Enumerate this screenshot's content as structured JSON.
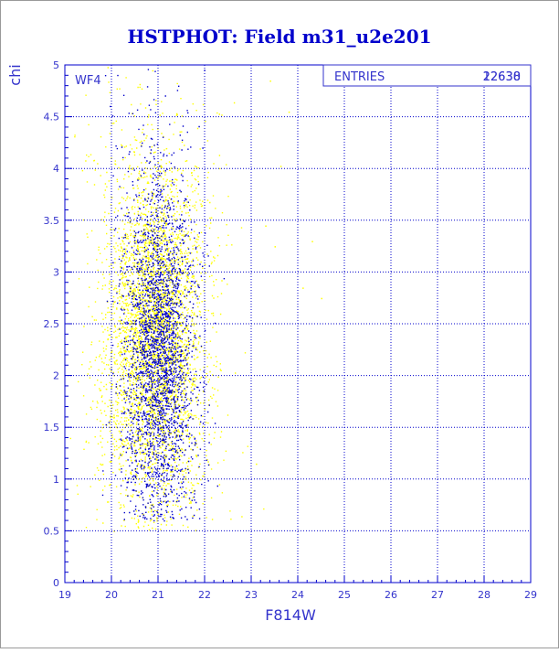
{
  "chart_data": {
    "type": "scatter",
    "title": "HSTPHOT: Field m31_u2e201",
    "xlabel": "F814W",
    "ylabel": "chi",
    "xlim": [
      19,
      29
    ],
    "ylim": [
      0,
      5
    ],
    "x_ticks": [
      "19",
      "20",
      "21",
      "22",
      "23",
      "24",
      "25",
      "26",
      "27",
      "28",
      "29"
    ],
    "y_ticks": [
      "0",
      "0.5",
      "1",
      "1.5",
      "2",
      "2.5",
      "3",
      "3.5",
      "4",
      "4.5",
      "5"
    ],
    "grid": true,
    "panel_label": "WF4",
    "stats": {
      "label": "ENTRIES",
      "values": [
        "12630",
        "22638"
      ]
    },
    "colors": {
      "title": "#0000cc",
      "axis_text": "#3333cc",
      "frame": "#0000cc",
      "grid": "#0000cc",
      "series_all": "#ffff00",
      "series_selected": "#0000cc"
    },
    "series": [
      {
        "color": "yellow",
        "n_points": 22638,
        "x_center": 20.9,
        "x_spread": 0.65,
        "y_range": [
          0.5,
          5.0
        ],
        "y_peak": 2.4
      },
      {
        "color": "blue",
        "n_points": 12630,
        "x_center": 21.0,
        "x_spread": 0.45,
        "y_range": [
          0.6,
          5.0
        ],
        "y_peak": 2.2
      }
    ],
    "sparse_tail_points": [
      {
        "x": 24.5,
        "y": 2.75
      },
      {
        "x": 24.1,
        "y": 2.85
      },
      {
        "x": 23.5,
        "y": 3.25
      },
      {
        "x": 23.3,
        "y": 3.45
      },
      {
        "x": 23.1,
        "y": 1.15
      },
      {
        "x": 23.4,
        "y": 4.85
      },
      {
        "x": 23.8,
        "y": 4.55
      },
      {
        "x": 24.3,
        "y": 3.3
      }
    ]
  }
}
